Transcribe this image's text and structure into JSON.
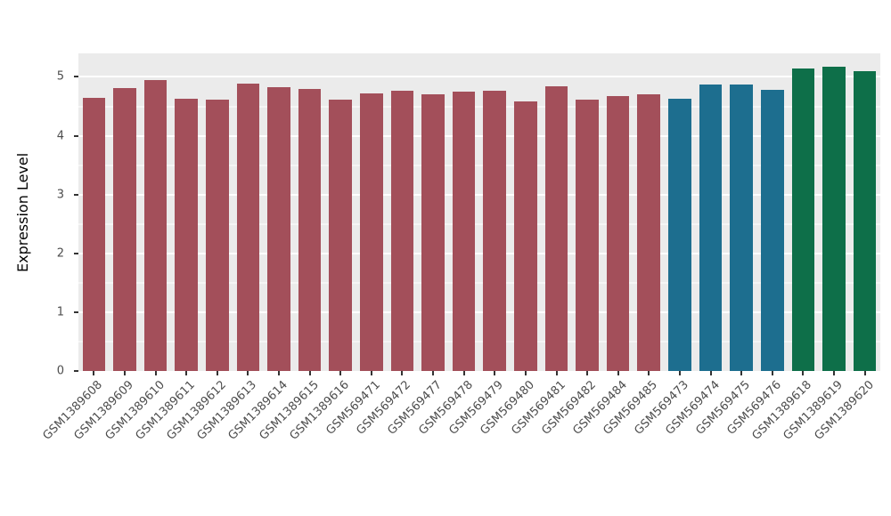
{
  "chart_data": {
    "type": "bar",
    "title": "",
    "xlabel": "",
    "ylabel": "Expression Level",
    "ylim": [
      0,
      5.4
    ],
    "yticks": [
      0,
      1,
      2,
      3,
      4,
      5
    ],
    "minor_tick_step": 0.5,
    "grid": "on",
    "legend_position": "none",
    "panel_background": "#EBEBEB",
    "grid_color": "#FFFFFF",
    "tick_color": "#333333",
    "axis_text_color": "#4D4D4D",
    "categories": [
      "GSM1389608",
      "GSM1389609",
      "GSM1389610",
      "GSM1389611",
      "GSM1389612",
      "GSM1389613",
      "GSM1389614",
      "GSM1389615",
      "GSM1389616",
      "GSM569471",
      "GSM569472",
      "GSM569477",
      "GSM569478",
      "GSM569479",
      "GSM569480",
      "GSM569481",
      "GSM569482",
      "GSM569484",
      "GSM569485",
      "GSM569473",
      "GSM569474",
      "GSM569475",
      "GSM569476",
      "GSM1389618",
      "GSM1389619",
      "GSM1389620"
    ],
    "values": [
      4.64,
      4.81,
      4.95,
      4.63,
      4.62,
      4.88,
      4.83,
      4.8,
      4.62,
      4.72,
      4.77,
      4.7,
      4.75,
      4.77,
      4.59,
      4.84,
      4.62,
      4.68,
      4.7,
      4.63,
      4.87,
      4.87,
      4.78,
      5.15,
      5.18,
      5.1
    ],
    "group_colors": {
      "maroon": "#A34F5A",
      "blue": "#1D6E8F",
      "green": "#0E6F49"
    },
    "bar_colors": [
      "#A34F5A",
      "#A34F5A",
      "#A34F5A",
      "#A34F5A",
      "#A34F5A",
      "#A34F5A",
      "#A34F5A",
      "#A34F5A",
      "#A34F5A",
      "#A34F5A",
      "#A34F5A",
      "#A34F5A",
      "#A34F5A",
      "#A34F5A",
      "#A34F5A",
      "#A34F5A",
      "#A34F5A",
      "#A34F5A",
      "#A34F5A",
      "#1D6E8F",
      "#1D6E8F",
      "#1D6E8F",
      "#1D6E8F",
      "#0E6F49",
      "#0E6F49",
      "#0E6F49"
    ]
  }
}
